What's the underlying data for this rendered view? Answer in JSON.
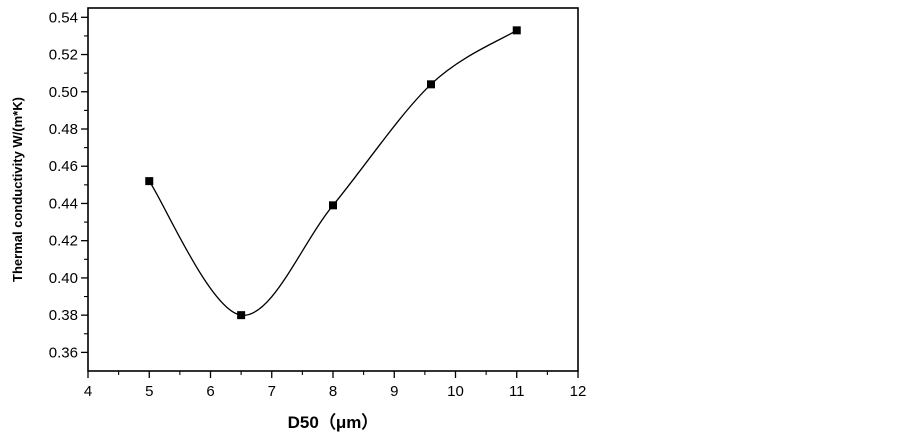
{
  "chart_data": {
    "type": "scatter",
    "title": "",
    "xlabel": "D50（μm）",
    "ylabel": "Thermal conductivity W/(m*K)",
    "xlim": [
      4,
      12
    ],
    "ylim": [
      0.35,
      0.545
    ],
    "x_ticks": [
      4,
      5,
      6,
      7,
      8,
      9,
      10,
      11,
      12
    ],
    "y_ticks": [
      0.36,
      0.38,
      0.4,
      0.42,
      0.44,
      0.46,
      0.48,
      0.5,
      0.52,
      0.54
    ],
    "x_tick_labels": [
      "4",
      "5",
      "6",
      "7",
      "8",
      "9",
      "10",
      "11",
      "12"
    ],
    "y_tick_labels": [
      "0.36",
      "0.38",
      "0.40",
      "0.42",
      "0.44",
      "0.46",
      "0.48",
      "0.50",
      "0.52",
      "0.54"
    ],
    "minor_ticks": true,
    "grid": false,
    "marker": "square",
    "smooth_curve": true,
    "series": [
      {
        "x": [
          5,
          6.5,
          8,
          9.6,
          11
        ],
        "y": [
          0.452,
          0.38,
          0.439,
          0.504,
          0.533
        ]
      }
    ]
  },
  "colors": {
    "axis": "#000000",
    "marker": "#000000",
    "line": "#000000",
    "background": "#ffffff"
  }
}
